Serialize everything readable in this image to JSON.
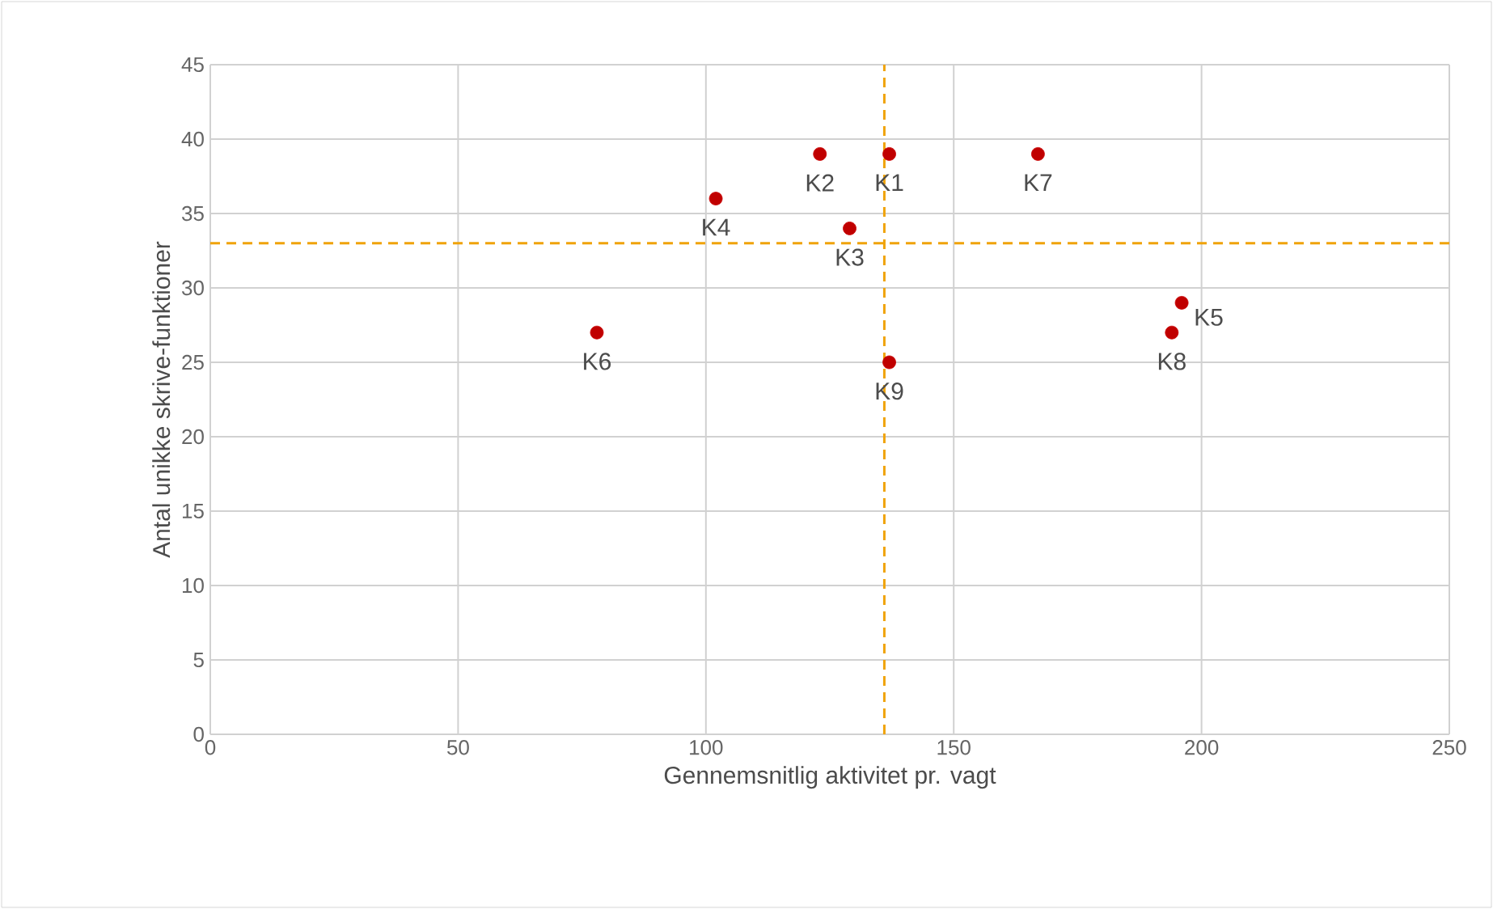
{
  "chart_data": {
    "type": "scatter",
    "xlabel": "Gennemsnitlig aktivitet pr. vagt",
    "ylabel": "Antal unikke skrive-funktioner",
    "x": [
      137,
      123,
      129,
      102,
      196,
      78,
      167,
      194,
      137
    ],
    "values": [
      39,
      39,
      34,
      36,
      29,
      27,
      39,
      27,
      25
    ],
    "color": "#c00000",
    "grid": true,
    "xlim": [
      0,
      250
    ],
    "xticks": [
      0,
      50,
      100,
      150,
      200,
      250
    ],
    "ylim": [
      0,
      45
    ],
    "yticks": [
      0,
      5,
      10,
      15,
      20,
      25,
      30,
      35,
      40,
      45
    ],
    "ref_lines": [
      {
        "axis": "x",
        "value": 136,
        "color": "#f0a30a",
        "line_style": "dashed"
      },
      {
        "axis": "y",
        "value": 33,
        "color": "#f0a30a",
        "line_style": "dashed"
      }
    ],
    "annotations": [
      {
        "text": "K1",
        "x": 137,
        "y": 39
      },
      {
        "text": "K2",
        "x": 123,
        "y": 39
      },
      {
        "text": "K3",
        "x": 129,
        "y": 34
      },
      {
        "text": "K4",
        "x": 102,
        "y": 36
      },
      {
        "text": "K5",
        "x": 196,
        "y": 29
      },
      {
        "text": "K6",
        "x": 78,
        "y": 27
      },
      {
        "text": "K7",
        "x": 167,
        "y": 39
      },
      {
        "text": "K8",
        "x": 194,
        "y": 27
      },
      {
        "text": "K9",
        "x": 137,
        "y": 25
      }
    ]
  }
}
